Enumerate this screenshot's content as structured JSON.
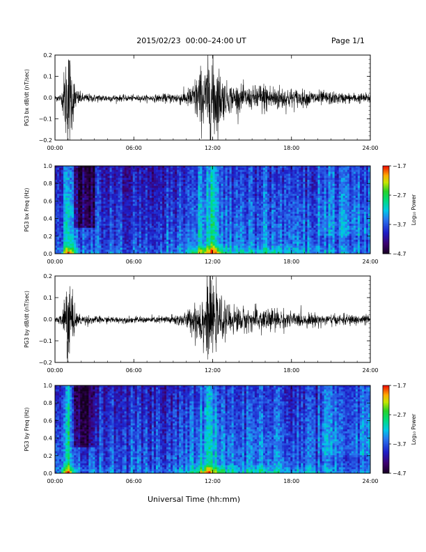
{
  "header": {
    "title": "2015/02/23  00:00–24:00 UT",
    "page": "Page 1/1"
  },
  "xaxis_title": "Universal Time (hh:mm)",
  "chart_data": [
    {
      "type": "line",
      "ylabel": "PG3 bx dB/dt (nT/sec)",
      "xlim": [
        0,
        24
      ],
      "ylim": [
        -0.2,
        0.2
      ],
      "y_ticks": [
        "0.2",
        "0.1",
        "0.0",
        "−0.1",
        "−0.2"
      ],
      "x_ticks": [
        "00:00",
        "06:00",
        "12:00",
        "18:00",
        "24:00"
      ],
      "activity_envelope": {
        "hours": [
          0,
          0.5,
          0.9,
          1.1,
          1.3,
          1.6,
          2,
          3,
          4,
          5,
          6,
          7,
          8,
          9,
          10,
          10.5,
          11,
          11.5,
          11.8,
          12,
          12.5,
          13,
          14,
          15,
          15.5,
          16,
          17,
          18,
          19,
          20,
          21,
          22,
          23,
          24
        ],
        "amplitude": [
          0.01,
          0.02,
          0.2,
          0.2,
          0.12,
          0.04,
          0.02,
          0.015,
          0.015,
          0.012,
          0.012,
          0.012,
          0.015,
          0.02,
          0.03,
          0.06,
          0.12,
          0.12,
          0.2,
          0.2,
          0.12,
          0.06,
          0.05,
          0.04,
          0.06,
          0.06,
          0.05,
          0.04,
          0.03,
          0.03,
          0.025,
          0.02,
          0.02,
          0.02
        ]
      },
      "grid": false
    },
    {
      "type": "heatmap",
      "ylabel": "PG3 bx Freq (Hz)",
      "xlim": [
        0,
        24
      ],
      "ylim": [
        0,
        1.0
      ],
      "y_ticks": [
        "1.0",
        "0.8",
        "0.6",
        "0.4",
        "0.2",
        "0.0"
      ],
      "x_ticks": [
        "00:00",
        "06:00",
        "12:00",
        "18:00",
        "24:00"
      ],
      "colorbar": {
        "label": "Log₁₀ Power",
        "ticks": [
          "−1.7",
          "−2.7",
          "−3.7",
          "−4.7"
        ],
        "range": [
          -4.7,
          -1.7
        ]
      }
    },
    {
      "type": "line",
      "ylabel": "PG3 by dB/dt (nT/sec)",
      "xlim": [
        0,
        24
      ],
      "ylim": [
        -0.2,
        0.2
      ],
      "y_ticks": [
        "0.2",
        "0.1",
        "0.0",
        "−0.1",
        "−0.2"
      ],
      "x_ticks": [
        "00:00",
        "06:00",
        "12:00",
        "18:00",
        "24:00"
      ],
      "activity_envelope": {
        "hours": [
          0,
          0.5,
          0.9,
          1.1,
          1.3,
          1.6,
          2,
          3,
          4,
          5,
          6,
          7,
          8,
          9,
          10,
          10.5,
          11,
          11.5,
          11.8,
          12,
          12.5,
          13,
          14,
          15,
          15.5,
          16,
          17,
          18,
          19,
          20,
          21,
          22,
          23,
          24
        ],
        "amplitude": [
          0.01,
          0.02,
          0.2,
          0.2,
          0.1,
          0.03,
          0.02,
          0.015,
          0.012,
          0.012,
          0.012,
          0.012,
          0.014,
          0.02,
          0.03,
          0.06,
          0.1,
          0.12,
          0.2,
          0.12,
          0.09,
          0.06,
          0.05,
          0.04,
          0.05,
          0.05,
          0.04,
          0.03,
          0.025,
          0.025,
          0.02,
          0.02,
          0.02,
          0.02
        ]
      },
      "grid": false
    },
    {
      "type": "heatmap",
      "ylabel": "PG3 by Freq (Hz)",
      "xlim": [
        0,
        24
      ],
      "ylim": [
        0,
        1.0
      ],
      "y_ticks": [
        "1.0",
        "0.8",
        "0.6",
        "0.4",
        "0.2",
        "0.0"
      ],
      "x_ticks": [
        "00:00",
        "06:00",
        "12:00",
        "18:00",
        "24:00"
      ],
      "colorbar": {
        "label": "Log₁₀ Power",
        "ticks": [
          "−1.7",
          "−2.7",
          "−3.7",
          "−4.7"
        ],
        "range": [
          -4.7,
          -1.7
        ]
      }
    }
  ]
}
